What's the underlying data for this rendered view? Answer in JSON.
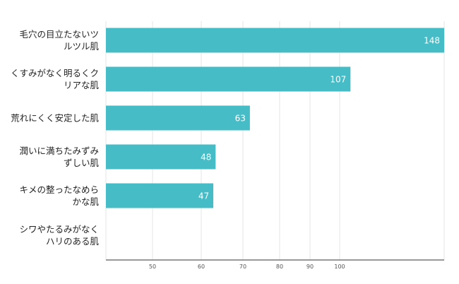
{
  "chart_data": {
    "type": "bar",
    "orientation": "horizontal",
    "title": "",
    "xlabel": "",
    "ylabel": "",
    "categories": [
      [
        "毛穴の目立たないツ",
        "ルツル肌"
      ],
      [
        "くすみがなく明るくク",
        "リアな肌"
      ],
      [
        "荒れにくく安定した肌"
      ],
      [
        "潤いに満ちたみずみ",
        "ずしい肌"
      ],
      [
        "キメの整ったなめら",
        "かな肌"
      ],
      [
        "シワやたるみがなく",
        "ハリのある肌"
      ]
    ],
    "values": [
      148,
      107,
      63,
      48,
      47,
      null
    ],
    "value_labels": [
      "148",
      "107",
      "63",
      "48",
      "47",
      ""
    ],
    "x_ticks": [
      "50",
      "60",
      "70",
      "80",
      "90",
      "100"
    ],
    "bar_color": "#46bdc6",
    "grid": true,
    "legend": "none"
  }
}
